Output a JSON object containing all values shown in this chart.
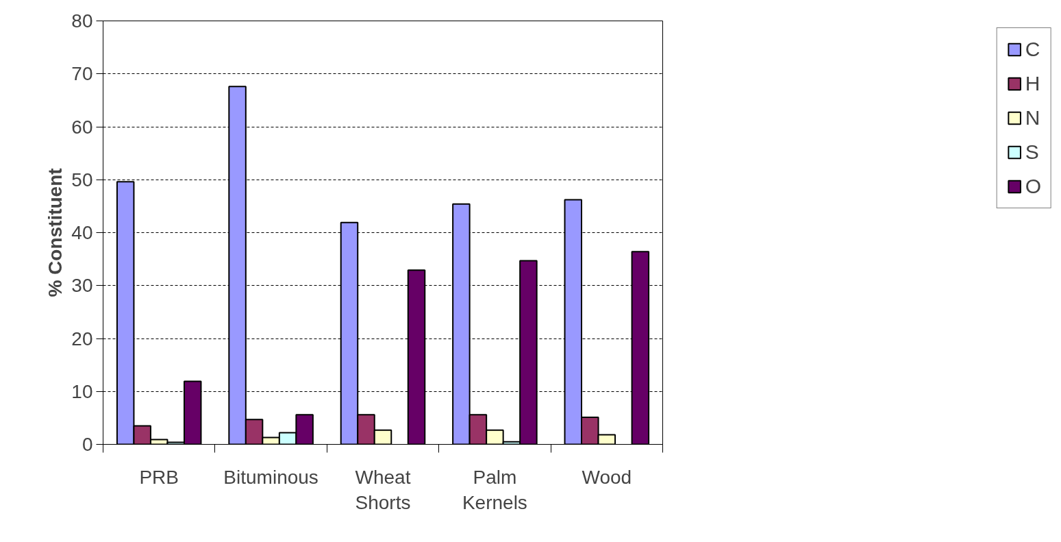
{
  "chart_data": {
    "type": "bar",
    "ylabel": "% Constituent",
    "categories": [
      "PRB",
      "Bituminous",
      "Wheat Shorts",
      "Palm Kernels",
      "Wood"
    ],
    "series": [
      {
        "name": "C",
        "color": "#9999ff",
        "values": [
          49.6,
          67.6,
          41.9,
          45.4,
          46.2
        ]
      },
      {
        "name": "H",
        "color": "#993366",
        "values": [
          3.5,
          4.7,
          5.6,
          5.6,
          5.1
        ]
      },
      {
        "name": "N",
        "color": "#ffffcc",
        "values": [
          0.9,
          1.3,
          2.7,
          2.7,
          1.8
        ]
      },
      {
        "name": "S",
        "color": "#ccffff",
        "values": [
          0.4,
          2.2,
          null,
          0.5,
          null
        ]
      },
      {
        "name": "O",
        "color": "#660066",
        "values": [
          11.9,
          5.6,
          32.9,
          34.7,
          36.4
        ]
      }
    ],
    "ylim": [
      0,
      80
    ],
    "yticks": [
      0,
      10,
      20,
      30,
      40,
      50,
      60,
      70,
      80
    ],
    "grid": "y",
    "legend": "right"
  }
}
